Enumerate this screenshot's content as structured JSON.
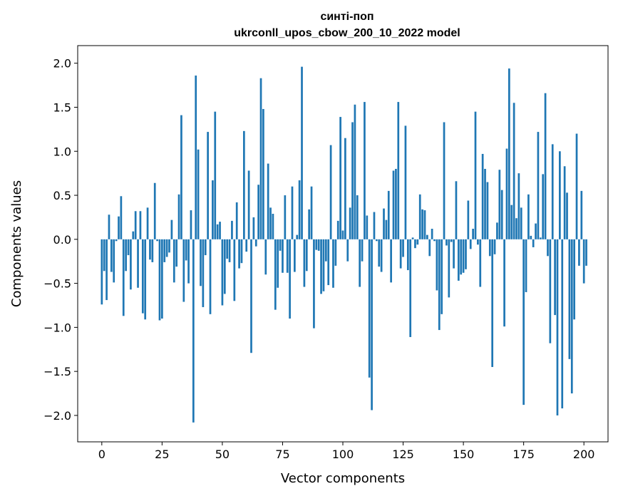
{
  "chart_data": {
    "type": "bar",
    "title": "синті-поп",
    "subtitle": "ukrconll_upos_cbow_200_10_2022 model",
    "xlabel": "Vector components",
    "ylabel": "Components values",
    "xlim": [
      -10,
      210
    ],
    "ylim": [
      -2.3,
      2.2
    ],
    "xticks": [
      0,
      25,
      50,
      75,
      100,
      125,
      150,
      175,
      200
    ],
    "yticks": [
      -2.0,
      -1.5,
      -1.0,
      -0.5,
      0.0,
      0.5,
      1.0,
      1.5,
      2.0
    ],
    "ytick_labels": [
      "−2.0",
      "−1.5",
      "−1.0",
      "−0.5",
      "0.0",
      "0.5",
      "1.0",
      "1.5",
      "2.0"
    ],
    "bar_color": "#1f77b4",
    "values": [
      -0.74,
      -0.36,
      -0.69,
      0.28,
      -0.37,
      -0.49,
      -0.02,
      0.26,
      0.49,
      -0.87,
      -0.36,
      -0.18,
      -0.57,
      0.09,
      0.32,
      -0.55,
      0.32,
      -0.84,
      -0.91,
      0.36,
      -0.23,
      -0.26,
      0.64,
      -0.02,
      -0.92,
      -0.9,
      -0.26,
      -0.2,
      -0.15,
      0.22,
      -0.49,
      -0.31,
      0.51,
      1.41,
      -0.71,
      -0.24,
      -0.5,
      0.33,
      -2.08,
      1.86,
      1.02,
      -0.53,
      -0.77,
      -0.18,
      1.22,
      -0.85,
      0.67,
      1.45,
      0.17,
      0.2,
      -0.75,
      -0.62,
      -0.22,
      -0.26,
      0.21,
      -0.7,
      0.42,
      -0.33,
      -0.27,
      1.23,
      -0.14,
      0.78,
      -1.29,
      0.25,
      -0.08,
      0.62,
      1.83,
      1.48,
      -0.4,
      0.86,
      0.36,
      0.29,
      -0.8,
      -0.55,
      -0.13,
      -0.38,
      0.5,
      -0.38,
      -0.9,
      0.6,
      -0.37,
      0.05,
      0.67,
      1.96,
      -0.54,
      -0.36,
      0.34,
      0.6,
      -1.01,
      -0.12,
      -0.13,
      -0.62,
      -0.59,
      -0.25,
      -0.52,
      1.07,
      -0.55,
      -0.3,
      0.21,
      1.39,
      0.1,
      1.15,
      -0.25,
      0.36,
      1.33,
      1.53,
      0.5,
      -0.54,
      -0.25,
      1.56,
      0.27,
      -1.57,
      -1.94,
      0.31,
      -0.02,
      -0.31,
      -0.37,
      0.35,
      0.22,
      0.55,
      -0.49,
      0.78,
      0.8,
      1.56,
      -0.33,
      -0.2,
      1.29,
      -0.35,
      -1.11,
      0.02,
      -0.1,
      -0.06,
      0.51,
      0.34,
      0.33,
      0.05,
      -0.19,
      0.12,
      -0.02,
      -0.58,
      -1.03,
      -0.85,
      1.33,
      -0.07,
      -0.66,
      -0.03,
      -0.33,
      0.66,
      -0.47,
      -0.4,
      -0.38,
      -0.34,
      0.44,
      -0.11,
      0.12,
      1.45,
      -0.06,
      -0.54,
      0.97,
      0.8,
      0.65,
      -0.19,
      -1.45,
      -0.17,
      0.19,
      0.79,
      0.56,
      -0.99,
      1.03,
      1.94,
      0.39,
      1.55,
      0.24,
      0.75,
      0.36,
      -1.88,
      -0.6,
      0.51,
      0.04,
      -0.09,
      0.18,
      1.22,
      0.02,
      0.74,
      1.66,
      -0.19,
      -1.18,
      1.08,
      -0.86,
      -2.0,
      1.0,
      -1.92,
      0.83,
      0.53,
      -1.36,
      -1.75,
      -0.91,
      1.2,
      -0.3,
      0.55,
      -0.5,
      -0.3
    ]
  }
}
